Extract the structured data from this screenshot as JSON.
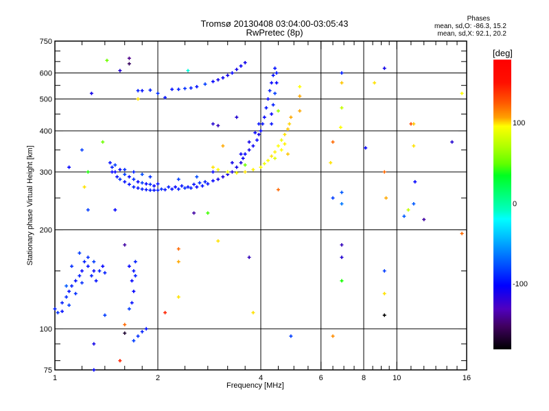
{
  "title": {
    "line1": "Tromsø 20130408 03:04:00-03:05:43",
    "line2": "RwPretec (8p)"
  },
  "stats": {
    "heading": "Phases",
    "o_line": "mean, sd,O: -86.3, 15.2",
    "x_line": "mean, sd,X:  92.1, 20.2"
  },
  "colorbar": {
    "unit": "[deg]",
    "range": [
      -180,
      180
    ],
    "ticks": [
      {
        "v": 100,
        "label": "100"
      },
      {
        "v": 0,
        "label": "0"
      },
      {
        "v": -100,
        "label": "-100"
      }
    ]
  },
  "chart_data": {
    "type": "scatter",
    "title": "Tromsø 20130408 03:04:00-03:05:43 RwPretec (8p)",
    "xlabel": "Frequency [MHz]",
    "ylabel": "Stationary phase Virtual Height [km]",
    "xscale": "log",
    "yscale": "log",
    "xlim": [
      1,
      16
    ],
    "ylim": [
      75,
      750
    ],
    "xticks": [
      {
        "v": 1,
        "label": "1"
      },
      {
        "v": 2,
        "label": "2"
      },
      {
        "v": 4,
        "label": "4"
      },
      {
        "v": 6,
        "label": "6"
      },
      {
        "v": 8,
        "label": "8"
      },
      {
        "v": 10,
        "label": "10"
      },
      {
        "v": 16,
        "label": "16"
      }
    ],
    "yticks": [
      {
        "v": 75,
        "label": "75"
      },
      {
        "v": 100,
        "label": "100"
      },
      {
        "v": 200,
        "label": "200"
      },
      {
        "v": 300,
        "label": "300"
      },
      {
        "v": 400,
        "label": "400"
      },
      {
        "v": 500,
        "label": "500"
      },
      {
        "v": 600,
        "label": "600"
      },
      {
        "v": 750,
        "label": "750"
      }
    ],
    "xgrid": [
      2,
      4,
      6,
      8,
      10
    ],
    "ygrid": [
      100,
      200,
      300,
      400,
      500,
      600
    ],
    "color_by": "phase [deg]",
    "point_fields": [
      "frequency_MHz",
      "height_km",
      "phase_deg"
    ],
    "points": [
      [
        1.45,
        320,
        -95
      ],
      [
        1.47,
        310,
        -90
      ],
      [
        1.5,
        300,
        -100
      ],
      [
        1.52,
        290,
        -95
      ],
      [
        1.55,
        285,
        -85
      ],
      [
        1.55,
        305,
        -100
      ],
      [
        1.6,
        280,
        -95
      ],
      [
        1.6,
        295,
        -80
      ],
      [
        1.65,
        275,
        -95
      ],
      [
        1.65,
        290,
        -100
      ],
      [
        1.7,
        270,
        -90
      ],
      [
        1.7,
        285,
        -85
      ],
      [
        1.75,
        268,
        -95
      ],
      [
        1.75,
        280,
        -100
      ],
      [
        1.8,
        266,
        -90
      ],
      [
        1.8,
        278,
        -80
      ],
      [
        1.85,
        265,
        -95
      ],
      [
        1.85,
        276,
        -100
      ],
      [
        1.9,
        264,
        -90
      ],
      [
        1.9,
        275,
        -85
      ],
      [
        1.95,
        264,
        -95
      ],
      [
        1.95,
        272,
        -100
      ],
      [
        2.0,
        264,
        -90
      ],
      [
        2.0,
        276,
        -95
      ],
      [
        2.05,
        266,
        -85
      ],
      [
        2.1,
        265,
        -95
      ],
      [
        2.15,
        270,
        -90
      ],
      [
        2.2,
        266,
        -95
      ],
      [
        2.25,
        270,
        -100
      ],
      [
        2.3,
        266,
        -90
      ],
      [
        2.35,
        272,
        -95
      ],
      [
        2.4,
        268,
        -85
      ],
      [
        2.45,
        270,
        -95
      ],
      [
        2.5,
        268,
        -90
      ],
      [
        2.55,
        275,
        -95
      ],
      [
        2.6,
        270,
        -100
      ],
      [
        2.65,
        278,
        -85
      ],
      [
        2.7,
        272,
        -95
      ],
      [
        2.75,
        280,
        -90
      ],
      [
        2.8,
        276,
        -95
      ],
      [
        2.9,
        282,
        -100
      ],
      [
        3.0,
        285,
        -110
      ],
      [
        3.1,
        290,
        -115
      ],
      [
        3.2,
        295,
        -110
      ],
      [
        3.3,
        300,
        -115
      ],
      [
        3.4,
        310,
        -110
      ],
      [
        3.5,
        320,
        -115
      ],
      [
        3.55,
        330,
        -105
      ],
      [
        3.6,
        340,
        -100
      ],
      [
        3.7,
        350,
        -110
      ],
      [
        3.8,
        360,
        -105
      ],
      [
        3.9,
        375,
        -100
      ],
      [
        3.95,
        390,
        -110
      ],
      [
        4.0,
        400,
        -100
      ],
      [
        4.05,
        420,
        -95
      ],
      [
        4.1,
        440,
        -100
      ],
      [
        4.15,
        470,
        -95
      ],
      [
        4.2,
        500,
        -100
      ],
      [
        4.25,
        530,
        -90
      ],
      [
        4.3,
        560,
        -100
      ],
      [
        4.35,
        590,
        -95
      ],
      [
        4.4,
        620,
        -95
      ],
      [
        1.5,
        315,
        -80
      ],
      [
        1.6,
        305,
        -85
      ],
      [
        1.7,
        300,
        -90
      ],
      [
        1.8,
        295,
        -75
      ],
      [
        1.9,
        290,
        -85
      ],
      [
        2.3,
        285,
        -80
      ],
      [
        2.6,
        290,
        -75
      ],
      [
        2.9,
        300,
        -100
      ],
      [
        3.3,
        320,
        -110
      ],
      [
        3.5,
        340,
        -105
      ],
      [
        3.7,
        370,
        -110
      ],
      [
        3.85,
        395,
        -100
      ],
      [
        3.95,
        420,
        -95
      ],
      [
        4.3,
        420,
        -95
      ],
      [
        4.3,
        450,
        -100
      ],
      [
        4.35,
        480,
        -90
      ],
      [
        4.4,
        520,
        -80
      ],
      [
        4.45,
        560,
        -100
      ],
      [
        4.45,
        600,
        -95
      ],
      [
        2.9,
        310,
        110
      ],
      [
        3.0,
        305,
        100
      ],
      [
        3.2,
        300,
        95
      ],
      [
        3.4,
        298,
        100
      ],
      [
        3.6,
        300,
        110
      ],
      [
        3.8,
        305,
        105
      ],
      [
        4.0,
        310,
        100
      ],
      [
        4.1,
        318,
        95
      ],
      [
        4.2,
        325,
        100
      ],
      [
        4.3,
        335,
        110
      ],
      [
        4.4,
        345,
        105
      ],
      [
        4.5,
        360,
        100
      ],
      [
        4.6,
        375,
        95
      ],
      [
        4.7,
        390,
        110
      ],
      [
        4.8,
        405,
        120
      ],
      [
        4.85,
        420,
        115
      ],
      [
        4.9,
        440,
        130
      ],
      [
        4.4,
        330,
        90
      ],
      [
        4.6,
        350,
        100
      ],
      [
        4.7,
        365,
        105
      ],
      [
        1.75,
        530,
        -90
      ],
      [
        1.8,
        530,
        -95
      ],
      [
        1.9,
        532,
        -90
      ],
      [
        2.0,
        520,
        -85
      ],
      [
        2.1,
        505,
        -95
      ],
      [
        2.2,
        535,
        -95
      ],
      [
        2.3,
        535,
        -90
      ],
      [
        2.4,
        538,
        -85
      ],
      [
        2.5,
        540,
        -90
      ],
      [
        2.6,
        545,
        -95
      ],
      [
        2.75,
        555,
        -80
      ],
      [
        2.9,
        565,
        -100
      ],
      [
        3.0,
        572,
        -110
      ],
      [
        3.1,
        580,
        -105
      ],
      [
        3.2,
        590,
        -110
      ],
      [
        3.3,
        600,
        -100
      ],
      [
        3.4,
        615,
        -110
      ],
      [
        3.5,
        630,
        -105
      ],
      [
        3.6,
        645,
        -110
      ],
      [
        1.0,
        115,
        -90
      ],
      [
        1.02,
        112,
        -85
      ],
      [
        1.05,
        113,
        -95
      ],
      [
        1.05,
        120,
        -90
      ],
      [
        1.08,
        125,
        -85
      ],
      [
        1.1,
        130,
        -95
      ],
      [
        1.1,
        118,
        -80
      ],
      [
        1.12,
        135,
        -90
      ],
      [
        1.15,
        140,
        -95
      ],
      [
        1.15,
        128,
        -85
      ],
      [
        1.18,
        145,
        -90
      ],
      [
        1.2,
        150,
        -100
      ],
      [
        1.2,
        138,
        -85
      ],
      [
        1.22,
        160,
        -90
      ],
      [
        1.25,
        155,
        -95
      ],
      [
        1.25,
        165,
        -85
      ],
      [
        1.28,
        145,
        -90
      ],
      [
        1.3,
        150,
        -100
      ],
      [
        1.3,
        160,
        -80
      ],
      [
        1.32,
        140,
        -95
      ],
      [
        1.35,
        150,
        -90
      ],
      [
        1.38,
        155,
        -100
      ],
      [
        1.4,
        148,
        -90
      ],
      [
        1.18,
        170,
        -80
      ],
      [
        1.12,
        155,
        -85
      ],
      [
        1.08,
        135,
        -70
      ],
      [
        1.68,
        140,
        -100
      ],
      [
        1.7,
        150,
        -95
      ],
      [
        1.72,
        145,
        -90
      ],
      [
        1.7,
        130,
        -100
      ],
      [
        1.68,
        120,
        -95
      ],
      [
        1.72,
        160,
        -90
      ],
      [
        1.65,
        155,
        -100
      ],
      [
        1.75,
        95,
        -85
      ],
      [
        1.8,
        98,
        -90
      ],
      [
        1.85,
        100,
        -95
      ],
      [
        1.7,
        92,
        -80
      ],
      [
        1.28,
        520,
        -110
      ],
      [
        1.55,
        610,
        -120
      ],
      [
        1.65,
        640,
        -160
      ],
      [
        1.65,
        665,
        -150
      ],
      [
        1.42,
        655,
        60
      ],
      [
        1.3,
        90,
        -110
      ],
      [
        1.3,
        75,
        -100
      ],
      [
        1.55,
        80,
        170
      ],
      [
        1.6,
        97,
        -170
      ],
      [
        1.6,
        103,
        150
      ],
      [
        1.65,
        115,
        -80
      ],
      [
        1.6,
        180,
        -140
      ],
      [
        2.3,
        175,
        150
      ],
      [
        2.3,
        160,
        130
      ],
      [
        2.1,
        112,
        170
      ],
      [
        2.3,
        125,
        110
      ],
      [
        3.0,
        185,
        110
      ],
      [
        3.7,
        165,
        -130
      ],
      [
        3.8,
        112,
        110
      ],
      [
        4.9,
        95,
        -80
      ],
      [
        5.2,
        510,
        130
      ],
      [
        5.2,
        460,
        130
      ],
      [
        6.5,
        370,
        150
      ],
      [
        6.5,
        95,
        140
      ],
      [
        6.4,
        320,
        110
      ],
      [
        6.9,
        600,
        -90
      ],
      [
        6.9,
        560,
        120
      ],
      [
        6.9,
        470,
        80
      ],
      [
        6.85,
        410,
        100
      ],
      [
        6.9,
        260,
        -70
      ],
      [
        6.9,
        240,
        -60
      ],
      [
        6.5,
        250,
        -80
      ],
      [
        6.9,
        180,
        -130
      ],
      [
        6.9,
        165,
        -120
      ],
      [
        6.9,
        140,
        40
      ],
      [
        8.1,
        355,
        -100
      ],
      [
        8.6,
        560,
        110
      ],
      [
        9.2,
        620,
        -110
      ],
      [
        9.2,
        300,
        150
      ],
      [
        9.3,
        250,
        130
      ],
      [
        9.2,
        150,
        -80
      ],
      [
        9.2,
        128,
        110
      ],
      [
        9.2,
        110,
        -180
      ],
      [
        10.5,
        220,
        -70
      ],
      [
        11.0,
        420,
        160
      ],
      [
        11.2,
        420,
        120
      ],
      [
        11.2,
        360,
        110
      ],
      [
        11.3,
        280,
        -100
      ],
      [
        11.2,
        240,
        -70
      ],
      [
        10.8,
        230,
        80
      ],
      [
        12.0,
        215,
        -140
      ],
      [
        14.5,
        370,
        -120
      ],
      [
        15.5,
        195,
        150
      ],
      [
        15.5,
        520,
        100
      ],
      [
        1.47,
        300,
        -100
      ],
      [
        1.38,
        370,
        60
      ],
      [
        1.25,
        300,
        40
      ],
      [
        1.2,
        350,
        -80
      ],
      [
        1.1,
        310,
        -100
      ],
      [
        1.22,
        270,
        110
      ],
      [
        1.25,
        230,
        -80
      ],
      [
        1.5,
        230,
        -100
      ],
      [
        1.4,
        110,
        -80
      ],
      [
        1.75,
        500,
        110
      ],
      [
        2.45,
        610,
        -30
      ],
      [
        2.9,
        420,
        -120
      ],
      [
        3.0,
        415,
        -130
      ],
      [
        3.4,
        440,
        -120
      ],
      [
        3.1,
        360,
        130
      ],
      [
        2.55,
        225,
        -140
      ],
      [
        2.8,
        225,
        50
      ],
      [
        3.6,
        315,
        60
      ],
      [
        4.5,
        265,
        150
      ],
      [
        4.5,
        460,
        70
      ],
      [
        5.2,
        545,
        100
      ],
      [
        4.8,
        340,
        120
      ]
    ]
  }
}
